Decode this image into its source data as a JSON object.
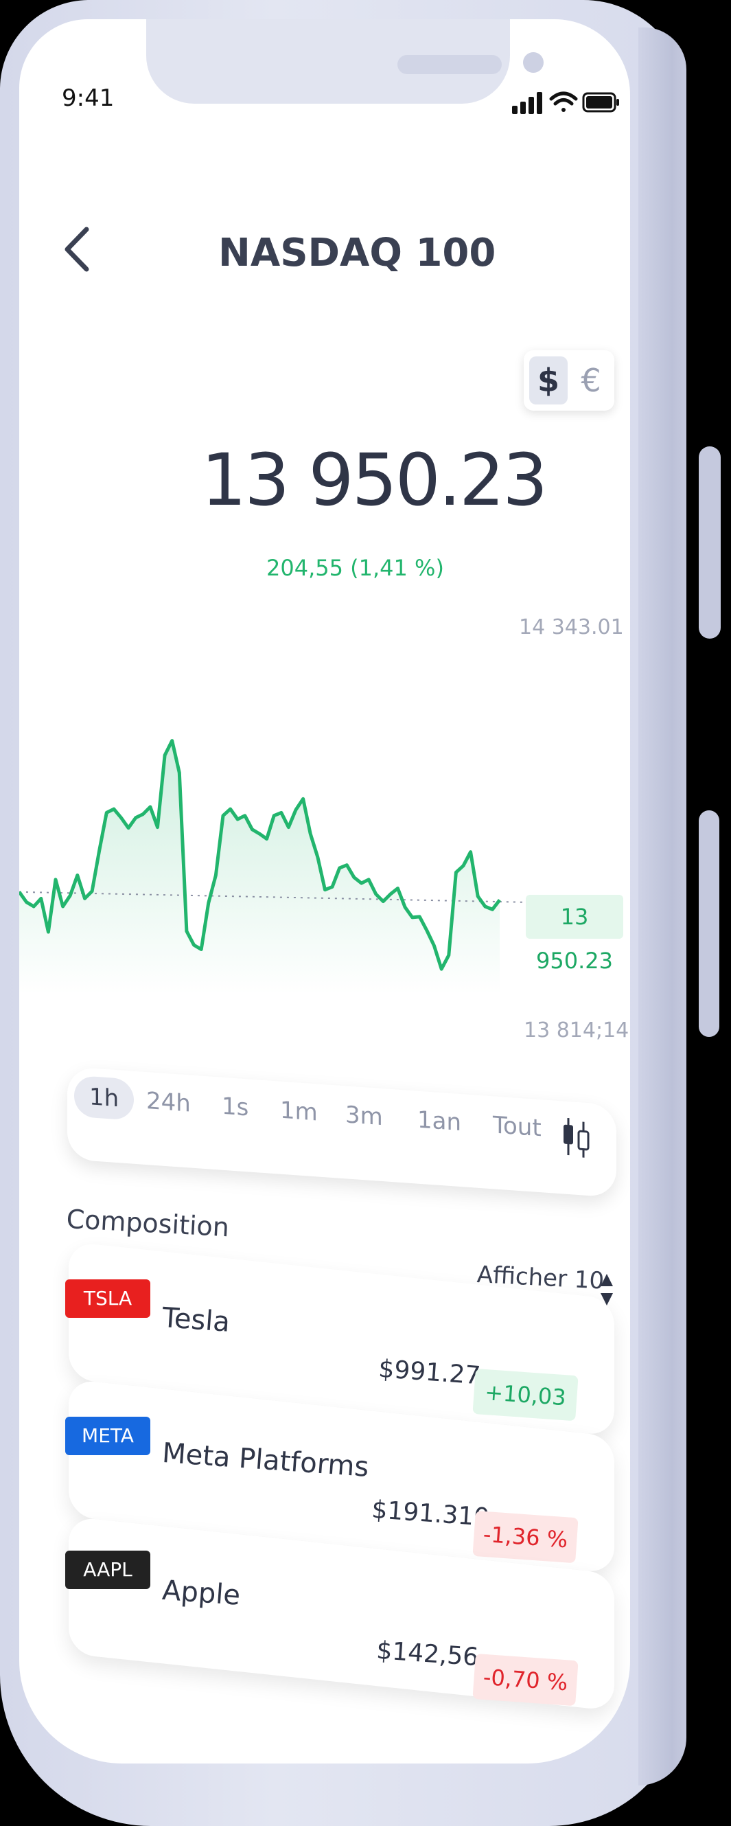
{
  "status": {
    "time": "9:41"
  },
  "header": {
    "title": "NASDAQ 100",
    "back_icon": "chevron-left-icon"
  },
  "currency": {
    "usd": "$",
    "eur": "€",
    "selected": "usd"
  },
  "quote": {
    "price": "13 950.23",
    "change": "204,55 (1,41 %)"
  },
  "chart": {
    "high_label": "14 343.01",
    "low_label": "13 814;14",
    "current_label": "13 950.23",
    "line_color": "#22b56d",
    "reference_color": "#8a8fa3"
  },
  "chart_data": {
    "type": "area",
    "y": [
      13955,
      13941,
      13935,
      13946,
      13900,
      13972,
      13935,
      13950,
      13978,
      13946,
      13956,
      14012,
      14064,
      14069,
      14057,
      14043,
      14057,
      14062,
      14072,
      14044,
      14143,
      14163,
      14119,
      13901,
      13882,
      13876,
      13940,
      13978,
      14060,
      14069,
      14055,
      14060,
      14041,
      14035,
      14028,
      14060,
      14064,
      14044,
      14068,
      14083,
      14035,
      14003,
      13958,
      13962,
      13988,
      13992,
      13975,
      13967,
      13972,
      13952,
      13942,
      13952,
      13960,
      13934,
      13920,
      13921,
      13902,
      13881,
      13849,
      13868,
      13982,
      13991,
      14010,
      13949,
      13935,
      13931,
      13944
    ],
    "ylim": [
      13814.14,
      14343.01
    ],
    "reference_y": 13950.23,
    "grid": false
  },
  "ranges": {
    "items": [
      "1h",
      "24h",
      "1s",
      "1m",
      "3m",
      "1an",
      "Tout"
    ],
    "selected": "1h",
    "toggle_icon": "candlestick-icon"
  },
  "composition": {
    "title": "Composition",
    "show_label": "Afficher 10",
    "sort_icon": "sort-arrows-icon",
    "rows": [
      {
        "ticker": "TSLA",
        "name": "Tesla",
        "price": "$991.27",
        "change": "+10,03 %",
        "ticker_color": "#e8201f",
        "positive": true
      },
      {
        "ticker": "META",
        "name": "Meta Platforms",
        "price": "$191.310",
        "change": "-1,36 %",
        "ticker_color": "#1769e0",
        "positive": false
      },
      {
        "ticker": "AAPL",
        "name": "Apple",
        "price": "$142,56",
        "change": "-0,70 %",
        "ticker_color": "#222222",
        "positive": false
      }
    ]
  }
}
